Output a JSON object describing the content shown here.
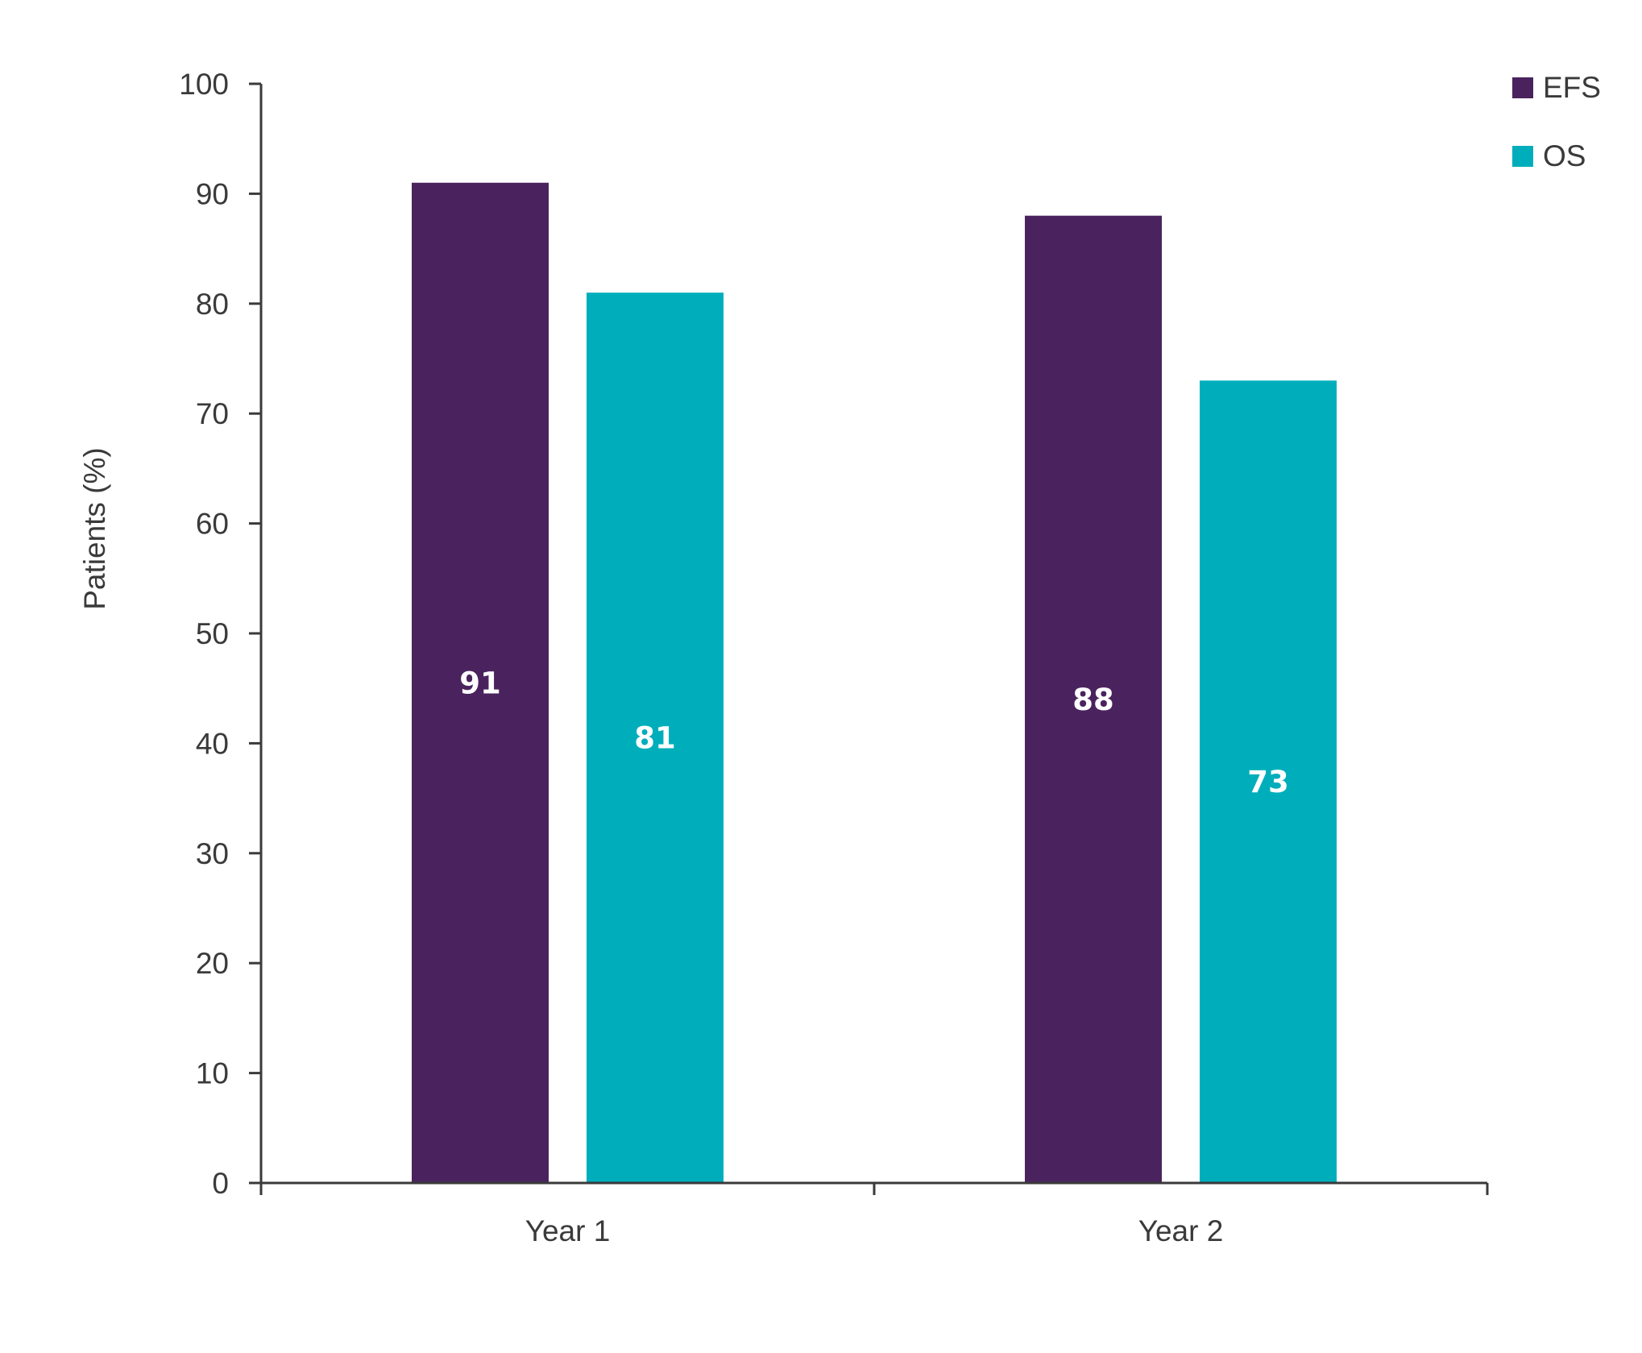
{
  "chart_data": {
    "type": "bar",
    "categories": [
      "Year 1",
      "Year 2"
    ],
    "series": [
      {
        "name": "EFS",
        "values": [
          91,
          88
        ],
        "color": "#4a235e"
      },
      {
        "name": "OS",
        "values": [
          81,
          73
        ],
        "color": "#00aebb"
      }
    ],
    "title": "",
    "xlabel": "",
    "ylabel": "Patients (%)",
    "ylim": [
      0,
      100
    ],
    "yticks": [
      0,
      10,
      20,
      30,
      40,
      50,
      60,
      70,
      80,
      90,
      100
    ],
    "grid": false,
    "legend": "top-right",
    "axis_color": "#3a3a3a",
    "data_labels": true
  }
}
